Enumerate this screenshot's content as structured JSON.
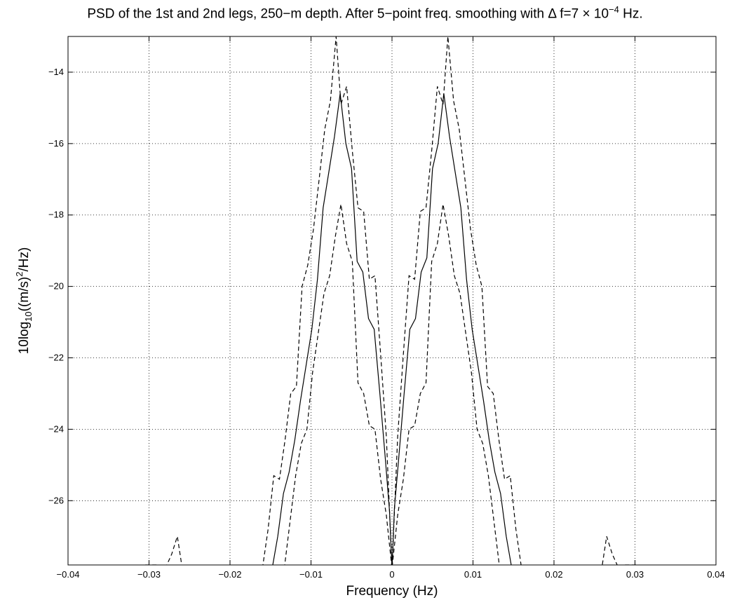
{
  "chart_data": {
    "type": "line",
    "title": "PSD of the 1st and 2nd legs, 250−m depth. After 5−point freq. smoothing with Δ f=7 × 10⁻⁴ Hz.",
    "title_parts": {
      "main": "PSD of the 1st and 2nd legs, 250−m depth. After 5−point freq. smoothing with",
      "delta": "Δ",
      "rest": " f=7 × 10",
      "exponent": "−4",
      "unit": " Hz."
    },
    "xlabel": "Frequency (Hz)",
    "ylabel_parts": {
      "a": "10log",
      "sub": "10",
      "b": "((m/s)",
      "sup": "2",
      "c": "/Hz)"
    },
    "xlim": [
      -0.04,
      0.04
    ],
    "ylim": [
      -27.8,
      -13
    ],
    "xticks": [
      -0.04,
      -0.03,
      -0.02,
      -0.01,
      0,
      0.01,
      0.02,
      0.03,
      0.04
    ],
    "xtick_labels": [
      "−0.04",
      "−0.03",
      "−0.02",
      "−0.01",
      "0",
      "0.01",
      "0.02",
      "0.03",
      "0.04"
    ],
    "yticks": [
      -14,
      -16,
      -18,
      -20,
      -22,
      -24,
      -26
    ],
    "ytick_labels": [
      "−14",
      "−16",
      "−18",
      "−20",
      "−22",
      "−24",
      "−26"
    ],
    "grid": true,
    "line_color": "#000000",
    "series": [
      {
        "style": "solid",
        "x": [
          -0.0148,
          -0.0141,
          -0.0134,
          -0.0127,
          -0.012,
          -0.0113,
          -0.0106,
          -0.0099,
          -0.0092,
          -0.0085,
          -0.0078,
          -0.0071,
          -0.0064,
          -0.0057,
          -0.005,
          -0.0043,
          -0.0036,
          -0.0029,
          -0.0022,
          -0.0015,
          -0.0008,
          -0.0003,
          0.0,
          0.0003,
          0.0008,
          0.0015,
          0.0022,
          0.0029,
          0.0036,
          0.0043,
          0.005,
          0.0057,
          0.0064,
          0.0071,
          0.0078,
          0.0085,
          0.0092,
          0.0099,
          0.0106,
          0.0113,
          0.012,
          0.0127,
          0.0134,
          0.0141,
          0.0148
        ],
        "y": [
          -27.9,
          -27.0,
          -25.8,
          -25.2,
          -24.3,
          -23.2,
          -22.2,
          -21.2,
          -19.8,
          -17.8,
          -16.8,
          -15.8,
          -14.6,
          -16.0,
          -16.7,
          -19.3,
          -19.6,
          -20.9,
          -21.2,
          -23.0,
          -24.9,
          -26.3,
          -27.9,
          -26.2,
          -24.9,
          -23.0,
          -21.2,
          -20.9,
          -19.6,
          -19.2,
          -16.7,
          -16.0,
          -14.6,
          -15.8,
          -16.8,
          -17.8,
          -19.8,
          -21.2,
          -22.2,
          -23.2,
          -24.3,
          -25.2,
          -25.8,
          -27.0,
          -27.9
        ]
      },
      {
        "style": "dashed",
        "x": [
          -0.0312,
          -0.0305,
          -0.0295,
          -0.0288,
          -0.028,
          -0.0272,
          -0.0265,
          -0.0259,
          -0.0252,
          -0.016,
          -0.0153,
          -0.0146,
          -0.0139,
          -0.0132,
          -0.0125,
          -0.0118,
          -0.0111,
          -0.0104,
          -0.0097,
          -0.009,
          -0.0083,
          -0.0076,
          -0.0069,
          -0.0063,
          -0.0056,
          -0.0049,
          -0.0042,
          -0.0035,
          -0.0028,
          -0.0021,
          -0.0014,
          -0.0007,
          0.0,
          0.0007,
          0.0014,
          0.0021,
          0.0028,
          0.0035,
          0.0042,
          0.0049,
          0.0056,
          0.0063,
          0.0069,
          0.0076,
          0.0083,
          0.009,
          0.0097,
          0.0104,
          0.0111,
          0.0118,
          0.0125,
          0.0132,
          0.0139,
          0.0146,
          0.0153,
          0.016,
          0.0252,
          0.0259,
          0.0265,
          0.0272,
          0.028,
          0.0288,
          0.0295,
          0.0305,
          0.0312
        ],
        "y": [
          -27.9,
          -27.8,
          -27.8,
          -27.8,
          -27.9,
          -27.5,
          -27.0,
          -27.9,
          -27.9,
          -27.9,
          -26.8,
          -25.3,
          -25.4,
          -24.3,
          -23.0,
          -22.8,
          -20.0,
          -19.4,
          -18.4,
          -17.0,
          -15.6,
          -14.8,
          -13.0,
          -14.9,
          -14.4,
          -16.2,
          -17.8,
          -17.9,
          -19.8,
          -19.7,
          -21.9,
          -24.2,
          -27.9,
          -24.2,
          -21.9,
          -19.7,
          -19.8,
          -17.9,
          -17.8,
          -16.2,
          -14.4,
          -14.9,
          -13.0,
          -14.8,
          -15.6,
          -17.0,
          -18.4,
          -19.4,
          -20.0,
          -22.8,
          -23.0,
          -24.3,
          -25.4,
          -25.3,
          -26.8,
          -27.9,
          -27.9,
          -27.9,
          -27.0,
          -27.5,
          -27.9,
          -27.8,
          -27.8,
          -27.8,
          -27.9
        ]
      },
      {
        "style": "dashed",
        "x": [
          -0.0133,
          -0.0126,
          -0.0119,
          -0.0112,
          -0.0105,
          -0.0098,
          -0.0091,
          -0.0084,
          -0.0077,
          -0.007,
          -0.0063,
          -0.0056,
          -0.0049,
          -0.0042,
          -0.0035,
          -0.0028,
          -0.0021,
          -0.0014,
          -0.0007,
          0.0,
          0.0007,
          0.0014,
          0.0021,
          0.0028,
          0.0035,
          0.0042,
          0.0049,
          0.0056,
          0.0063,
          0.007,
          0.0077,
          0.0084,
          0.0091,
          0.0098,
          0.0105,
          0.0112,
          0.0119,
          0.0126,
          0.0133
        ],
        "y": [
          -27.9,
          -26.6,
          -25.3,
          -24.4,
          -24.0,
          -22.4,
          -21.3,
          -20.2,
          -19.7,
          -18.6,
          -17.7,
          -18.8,
          -19.3,
          -22.7,
          -23.0,
          -23.9,
          -24.0,
          -25.4,
          -26.4,
          -27.9,
          -26.4,
          -25.4,
          -24.0,
          -23.9,
          -23.0,
          -22.7,
          -19.3,
          -18.8,
          -17.7,
          -18.6,
          -19.7,
          -20.2,
          -21.3,
          -22.4,
          -24.0,
          -24.4,
          -25.3,
          -26.6,
          -27.9
        ]
      }
    ]
  }
}
